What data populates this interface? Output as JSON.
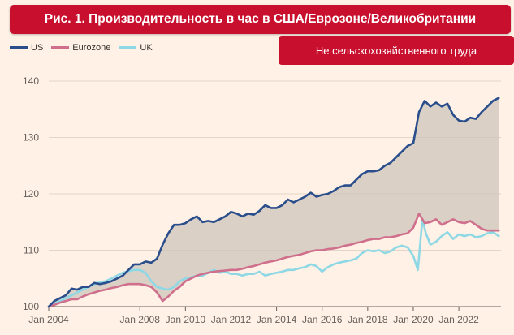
{
  "header": {
    "title": "Рис. 1. Производительность в час  в США/Еврозоне/Великобритании",
    "subtitle": "Не сельскохозяйственного труда"
  },
  "colors": {
    "us": "#2a4e8c",
    "eurozone": "#cf6f8c",
    "uk": "#8ed8e6",
    "band_fill": "#cdc4bb",
    "grid": "#e3d6c9",
    "background": "#fff1e5",
    "banner": "#c8102e"
  },
  "chart_data": {
    "type": "line",
    "title": "",
    "xlabel": "",
    "ylabel": "",
    "ylim": [
      100,
      140
    ],
    "xlim": [
      2004.0,
      2023.85
    ],
    "grid": true,
    "legend_position": "top-left",
    "shaded_between": [
      "US",
      "Eurozone"
    ],
    "y_ticks": [
      100,
      110,
      120,
      130,
      140
    ],
    "x_ticks": [
      {
        "value": 2004,
        "label": "Jan 2004"
      },
      {
        "value": 2008,
        "label": "Jan 2008"
      },
      {
        "value": 2010,
        "label": "Jan 2010"
      },
      {
        "value": 2012,
        "label": "Jan 2012"
      },
      {
        "value": 2014,
        "label": "Jan 2014"
      },
      {
        "value": 2016,
        "label": "Jan 2016"
      },
      {
        "value": 2018,
        "label": "Jan 2018"
      },
      {
        "value": 2020,
        "label": "Jan 2020"
      },
      {
        "value": 2022,
        "label": "Jan 2022"
      }
    ],
    "series": [
      {
        "name": "US",
        "points": [
          [
            2004.0,
            100.0
          ],
          [
            2004.25,
            101.0
          ],
          [
            2004.5,
            101.5
          ],
          [
            2004.75,
            102.0
          ],
          [
            2005.0,
            103.2
          ],
          [
            2005.25,
            103.0
          ],
          [
            2005.5,
            103.5
          ],
          [
            2005.75,
            103.5
          ],
          [
            2006.0,
            104.2
          ],
          [
            2006.25,
            104.0
          ],
          [
            2006.5,
            104.2
          ],
          [
            2006.75,
            104.5
          ],
          [
            2007.0,
            105.0
          ],
          [
            2007.25,
            105.5
          ],
          [
            2007.5,
            106.5
          ],
          [
            2007.75,
            107.5
          ],
          [
            2008.0,
            107.5
          ],
          [
            2008.25,
            108.0
          ],
          [
            2008.5,
            107.8
          ],
          [
            2008.75,
            108.5
          ],
          [
            2009.0,
            111.0
          ],
          [
            2009.25,
            113.0
          ],
          [
            2009.5,
            114.5
          ],
          [
            2009.75,
            114.5
          ],
          [
            2010.0,
            114.8
          ],
          [
            2010.25,
            115.5
          ],
          [
            2010.5,
            116.0
          ],
          [
            2010.75,
            115.0
          ],
          [
            2011.0,
            115.2
          ],
          [
            2011.25,
            115.0
          ],
          [
            2011.5,
            115.5
          ],
          [
            2011.75,
            116.0
          ],
          [
            2012.0,
            116.8
          ],
          [
            2012.25,
            116.5
          ],
          [
            2012.5,
            116.0
          ],
          [
            2012.75,
            116.5
          ],
          [
            2013.0,
            116.3
          ],
          [
            2013.25,
            117.0
          ],
          [
            2013.5,
            118.0
          ],
          [
            2013.75,
            117.5
          ],
          [
            2014.0,
            117.5
          ],
          [
            2014.25,
            118.0
          ],
          [
            2014.5,
            119.0
          ],
          [
            2014.75,
            118.5
          ],
          [
            2015.0,
            119.0
          ],
          [
            2015.25,
            119.5
          ],
          [
            2015.5,
            120.2
          ],
          [
            2015.75,
            119.5
          ],
          [
            2016.0,
            119.8
          ],
          [
            2016.25,
            120.0
          ],
          [
            2016.5,
            120.5
          ],
          [
            2016.75,
            121.2
          ],
          [
            2017.0,
            121.5
          ],
          [
            2017.25,
            121.5
          ],
          [
            2017.5,
            122.5
          ],
          [
            2017.75,
            123.5
          ],
          [
            2018.0,
            124.0
          ],
          [
            2018.25,
            124.0
          ],
          [
            2018.5,
            124.2
          ],
          [
            2018.75,
            125.0
          ],
          [
            2019.0,
            125.5
          ],
          [
            2019.25,
            126.5
          ],
          [
            2019.5,
            127.5
          ],
          [
            2019.75,
            128.5
          ],
          [
            2020.0,
            129.0
          ],
          [
            2020.25,
            134.5
          ],
          [
            2020.5,
            136.5
          ],
          [
            2020.75,
            135.5
          ],
          [
            2021.0,
            136.2
          ],
          [
            2021.25,
            135.5
          ],
          [
            2021.5,
            136.0
          ],
          [
            2021.75,
            134.0
          ],
          [
            2022.0,
            133.0
          ],
          [
            2022.25,
            132.8
          ],
          [
            2022.5,
            133.5
          ],
          [
            2022.75,
            133.3
          ],
          [
            2023.0,
            134.5
          ],
          [
            2023.25,
            135.5
          ],
          [
            2023.5,
            136.5
          ],
          [
            2023.75,
            137.0
          ]
        ]
      },
      {
        "name": "Eurozone",
        "points": [
          [
            2004.0,
            100.0
          ],
          [
            2004.25,
            100.3
          ],
          [
            2004.5,
            100.7
          ],
          [
            2004.75,
            101.0
          ],
          [
            2005.0,
            101.3
          ],
          [
            2005.25,
            101.3
          ],
          [
            2005.5,
            101.8
          ],
          [
            2005.75,
            102.2
          ],
          [
            2006.0,
            102.5
          ],
          [
            2006.25,
            102.8
          ],
          [
            2006.5,
            103.0
          ],
          [
            2006.75,
            103.3
          ],
          [
            2007.0,
            103.5
          ],
          [
            2007.25,
            103.8
          ],
          [
            2007.5,
            104.0
          ],
          [
            2007.75,
            104.0
          ],
          [
            2008.0,
            104.0
          ],
          [
            2008.25,
            103.8
          ],
          [
            2008.5,
            103.5
          ],
          [
            2008.75,
            102.5
          ],
          [
            2009.0,
            101.0
          ],
          [
            2009.25,
            101.8
          ],
          [
            2009.5,
            102.8
          ],
          [
            2009.75,
            103.5
          ],
          [
            2010.0,
            104.5
          ],
          [
            2010.25,
            105.0
          ],
          [
            2010.5,
            105.5
          ],
          [
            2010.75,
            105.8
          ],
          [
            2011.0,
            106.0
          ],
          [
            2011.25,
            106.2
          ],
          [
            2011.5,
            106.3
          ],
          [
            2011.75,
            106.4
          ],
          [
            2012.0,
            106.5
          ],
          [
            2012.25,
            106.5
          ],
          [
            2012.5,
            106.7
          ],
          [
            2012.75,
            107.0
          ],
          [
            2013.0,
            107.2
          ],
          [
            2013.25,
            107.5
          ],
          [
            2013.5,
            107.8
          ],
          [
            2013.75,
            108.0
          ],
          [
            2014.0,
            108.2
          ],
          [
            2014.25,
            108.5
          ],
          [
            2014.5,
            108.8
          ],
          [
            2014.75,
            109.0
          ],
          [
            2015.0,
            109.2
          ],
          [
            2015.25,
            109.5
          ],
          [
            2015.5,
            109.8
          ],
          [
            2015.75,
            110.0
          ],
          [
            2016.0,
            110.0
          ],
          [
            2016.25,
            110.2
          ],
          [
            2016.5,
            110.3
          ],
          [
            2016.75,
            110.5
          ],
          [
            2017.0,
            110.8
          ],
          [
            2017.25,
            111.0
          ],
          [
            2017.5,
            111.3
          ],
          [
            2017.75,
            111.5
          ],
          [
            2018.0,
            111.8
          ],
          [
            2018.25,
            112.0
          ],
          [
            2018.5,
            112.0
          ],
          [
            2018.75,
            112.3
          ],
          [
            2019.0,
            112.3
          ],
          [
            2019.25,
            112.5
          ],
          [
            2019.5,
            112.8
          ],
          [
            2019.75,
            113.0
          ],
          [
            2020.0,
            114.0
          ],
          [
            2020.25,
            116.5
          ],
          [
            2020.5,
            114.8
          ],
          [
            2020.75,
            115.0
          ],
          [
            2021.0,
            115.5
          ],
          [
            2021.25,
            114.5
          ],
          [
            2021.5,
            115.0
          ],
          [
            2021.75,
            115.5
          ],
          [
            2022.0,
            115.0
          ],
          [
            2022.25,
            114.8
          ],
          [
            2022.5,
            115.2
          ],
          [
            2022.75,
            114.5
          ],
          [
            2023.0,
            113.8
          ],
          [
            2023.25,
            113.5
          ],
          [
            2023.5,
            113.5
          ],
          [
            2023.75,
            113.5
          ]
        ]
      },
      {
        "name": "UK",
        "points": [
          [
            2004.0,
            100.0
          ],
          [
            2004.25,
            100.5
          ],
          [
            2004.5,
            101.0
          ],
          [
            2004.75,
            101.5
          ],
          [
            2005.0,
            102.0
          ],
          [
            2005.25,
            102.5
          ],
          [
            2005.5,
            103.0
          ],
          [
            2005.75,
            103.5
          ],
          [
            2006.0,
            104.0
          ],
          [
            2006.25,
            104.3
          ],
          [
            2006.5,
            104.5
          ],
          [
            2006.75,
            105.0
          ],
          [
            2007.0,
            105.5
          ],
          [
            2007.25,
            106.0
          ],
          [
            2007.5,
            106.3
          ],
          [
            2007.75,
            106.5
          ],
          [
            2008.0,
            106.5
          ],
          [
            2008.25,
            106.0
          ],
          [
            2008.5,
            104.5
          ],
          [
            2008.75,
            103.5
          ],
          [
            2009.0,
            103.2
          ],
          [
            2009.25,
            103.0
          ],
          [
            2009.5,
            103.5
          ],
          [
            2009.75,
            104.5
          ],
          [
            2010.0,
            105.0
          ],
          [
            2010.25,
            105.2
          ],
          [
            2010.5,
            105.5
          ],
          [
            2010.75,
            105.5
          ],
          [
            2011.0,
            106.0
          ],
          [
            2011.25,
            106.5
          ],
          [
            2011.5,
            106.0
          ],
          [
            2011.75,
            106.2
          ],
          [
            2012.0,
            105.8
          ],
          [
            2012.25,
            105.8
          ],
          [
            2012.5,
            105.5
          ],
          [
            2012.75,
            105.8
          ],
          [
            2013.0,
            105.8
          ],
          [
            2013.25,
            106.2
          ],
          [
            2013.5,
            105.5
          ],
          [
            2013.75,
            105.8
          ],
          [
            2014.0,
            106.0
          ],
          [
            2014.25,
            106.2
          ],
          [
            2014.5,
            106.5
          ],
          [
            2014.75,
            106.5
          ],
          [
            2015.0,
            106.8
          ],
          [
            2015.25,
            107.0
          ],
          [
            2015.5,
            107.5
          ],
          [
            2015.75,
            107.2
          ],
          [
            2016.0,
            106.2
          ],
          [
            2016.25,
            107.0
          ],
          [
            2016.5,
            107.5
          ],
          [
            2016.75,
            107.8
          ],
          [
            2017.0,
            108.0
          ],
          [
            2017.25,
            108.2
          ],
          [
            2017.5,
            108.5
          ],
          [
            2017.75,
            109.5
          ],
          [
            2018.0,
            110.0
          ],
          [
            2018.25,
            109.8
          ],
          [
            2018.5,
            110.0
          ],
          [
            2018.75,
            109.5
          ],
          [
            2019.0,
            109.8
          ],
          [
            2019.25,
            110.5
          ],
          [
            2019.5,
            110.8
          ],
          [
            2019.75,
            110.5
          ],
          [
            2020.0,
            109.0
          ],
          [
            2020.2,
            106.5
          ],
          [
            2020.3,
            111.0
          ],
          [
            2020.4,
            115.5
          ],
          [
            2020.55,
            113.0
          ],
          [
            2020.75,
            111.0
          ],
          [
            2021.0,
            111.5
          ],
          [
            2021.25,
            112.5
          ],
          [
            2021.5,
            113.2
          ],
          [
            2021.75,
            112.0
          ],
          [
            2022.0,
            112.8
          ],
          [
            2022.25,
            112.5
          ],
          [
            2022.5,
            112.8
          ],
          [
            2022.75,
            112.3
          ],
          [
            2023.0,
            112.5
          ],
          [
            2023.25,
            113.0
          ],
          [
            2023.5,
            113.2
          ],
          [
            2023.75,
            112.5
          ]
        ]
      }
    ]
  }
}
